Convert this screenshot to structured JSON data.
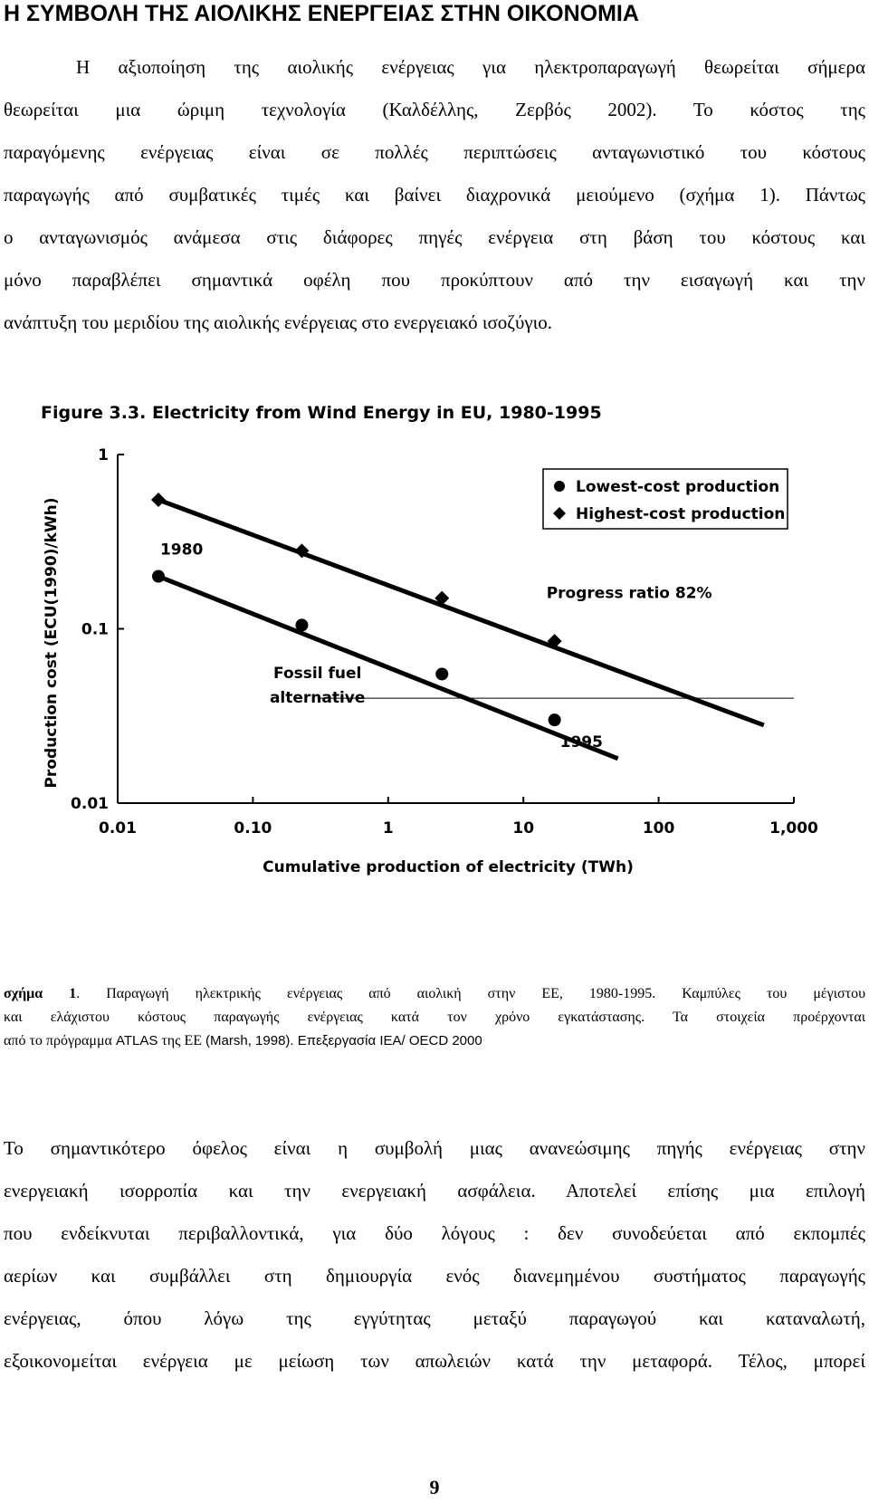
{
  "heading": "Η ΣΥΜΒΟΛΗ ΤΗΣ ΑΙΟΛΙΚΗΣ ΕΝΕΡΓΕΙΑΣ ΣΤΗΝ ΟΙΚΟΝΟΜΙΑ",
  "paragraph1": [
    "Η αξιοποίηση της αιολικής ενέργειας για ηλεκτροπαραγωγή θεωρείται σήμερα",
    "θεωρείται μια ώριμη τεχνολογία (Καλδέλλης, Ζερβός 2002). Το κόστος της",
    "παραγόμενης ενέργειας είναι σε πολλές περιπτώσεις ανταγωνιστικό του κόστους",
    "παραγωγής από συμβατικές τιμές και βαίνει διαχρονικά μειούμενο (σχήμα 1). Πάντως",
    "ο ανταγωνισμός ανάμεσα στις διάφορες πηγές ενέργεια στη βάση του κόστους και",
    "μόνο παραβλέπει σημαντικά οφέλη που προκύπτουν από την εισαγωγή και την",
    "ανάπτυξη του μεριδίου της αιολικής ενέργειας στο ενεργειακό ισοζύγιο."
  ],
  "chart_data": {
    "type": "scatter",
    "title": "Figure 3.3.  Electricity from Wind Energy in EU, 1980-1995",
    "xlabel": "Cumulative production of electricity (TWh)",
    "ylabel": "Production cost (ECU(1990)/kWh)",
    "x_scale": "log",
    "y_scale": "log",
    "xlim": [
      0.01,
      1000
    ],
    "ylim": [
      0.01,
      1
    ],
    "x_ticks": [
      {
        "value": 0.01,
        "label": "0.01"
      },
      {
        "value": 0.1,
        "label": "0.10"
      },
      {
        "value": 1,
        "label": "1"
      },
      {
        "value": 10,
        "label": "10"
      },
      {
        "value": 100,
        "label": "100"
      },
      {
        "value": 1000,
        "label": "1,000"
      }
    ],
    "y_ticks": [
      {
        "value": 0.01,
        "label": "0.01"
      },
      {
        "value": 0.1,
        "label": "0.1"
      },
      {
        "value": 1,
        "label": "1"
      }
    ],
    "legend_position": "top-right",
    "series": [
      {
        "name": "Lowest-cost production",
        "marker": "circle",
        "x": [
          0.02,
          0.23,
          2.5,
          17
        ],
        "y": [
          0.2,
          0.105,
          0.055,
          0.03
        ],
        "trend": {
          "x": [
            0.02,
            50
          ],
          "y": [
            0.2,
            0.018
          ]
        }
      },
      {
        "name": "Highest-cost production",
        "marker": "diamond",
        "x": [
          0.02,
          0.23,
          2.5,
          17
        ],
        "y": [
          0.55,
          0.28,
          0.15,
          0.085
        ],
        "trend": {
          "x": [
            0.02,
            600
          ],
          "y": [
            0.55,
            0.028
          ]
        }
      }
    ],
    "reference_line": {
      "label": "Fossil fuel\nalternative",
      "y": 0.04,
      "x_from": 0.3,
      "x_to": 1000
    },
    "annotations": [
      {
        "text": "1980",
        "x": 0.02,
        "y": 0.2
      },
      {
        "text": "1995",
        "x": 17,
        "y": 0.03
      },
      {
        "text": "Progress ratio 82%",
        "x": 8,
        "y": 0.11
      }
    ]
  },
  "caption": {
    "label": "σχήμα 1",
    "line1_rest": ". Παραγωγή ηλεκτρικής ενέργειας από αιολική στην ΕΕ, 1980-1995. Καμπύλες του μέγιστου",
    "line2": "και ελάχιστου κόστους παραγωγής ενέργειας κατά τον χρόνο εγκατάστασης. Τα στοιχεία προέρχονται",
    "line3_a": "από το πρόγραμμα ",
    "line3_b": "ATLAS",
    "line3_c": " της ΕΕ ",
    "line3_d": "(Marsh, 1998). Επεξεργασία IEA/ OECD 2000"
  },
  "paragraph2": [
    "Το σημαντικότερο όφελος είναι η συμβολή μιας ανανεώσιμης πηγής ενέργειας στην",
    "ενεργειακή ισορροπία και την ενεργειακή ασφάλεια. Αποτελεί επίσης μια επιλογή",
    "που ενδείκνυται περιβαλλοντικά, για δύο λόγους : δεν συνοδεύεται από εκπομπές",
    "αερίων και συμβάλλει στη δημιουργία ενός διανεμημένου συστήματος παραγωγής",
    "ενέργειας, όπου λόγω της εγγύτητας μεταξύ παραγωγού και καταναλωτή,",
    "εξοικονομείται ενέργεια με μείωση των απωλειών κατά την μεταφορά. Τέλος, μπορεί"
  ],
  "page_number": "9"
}
